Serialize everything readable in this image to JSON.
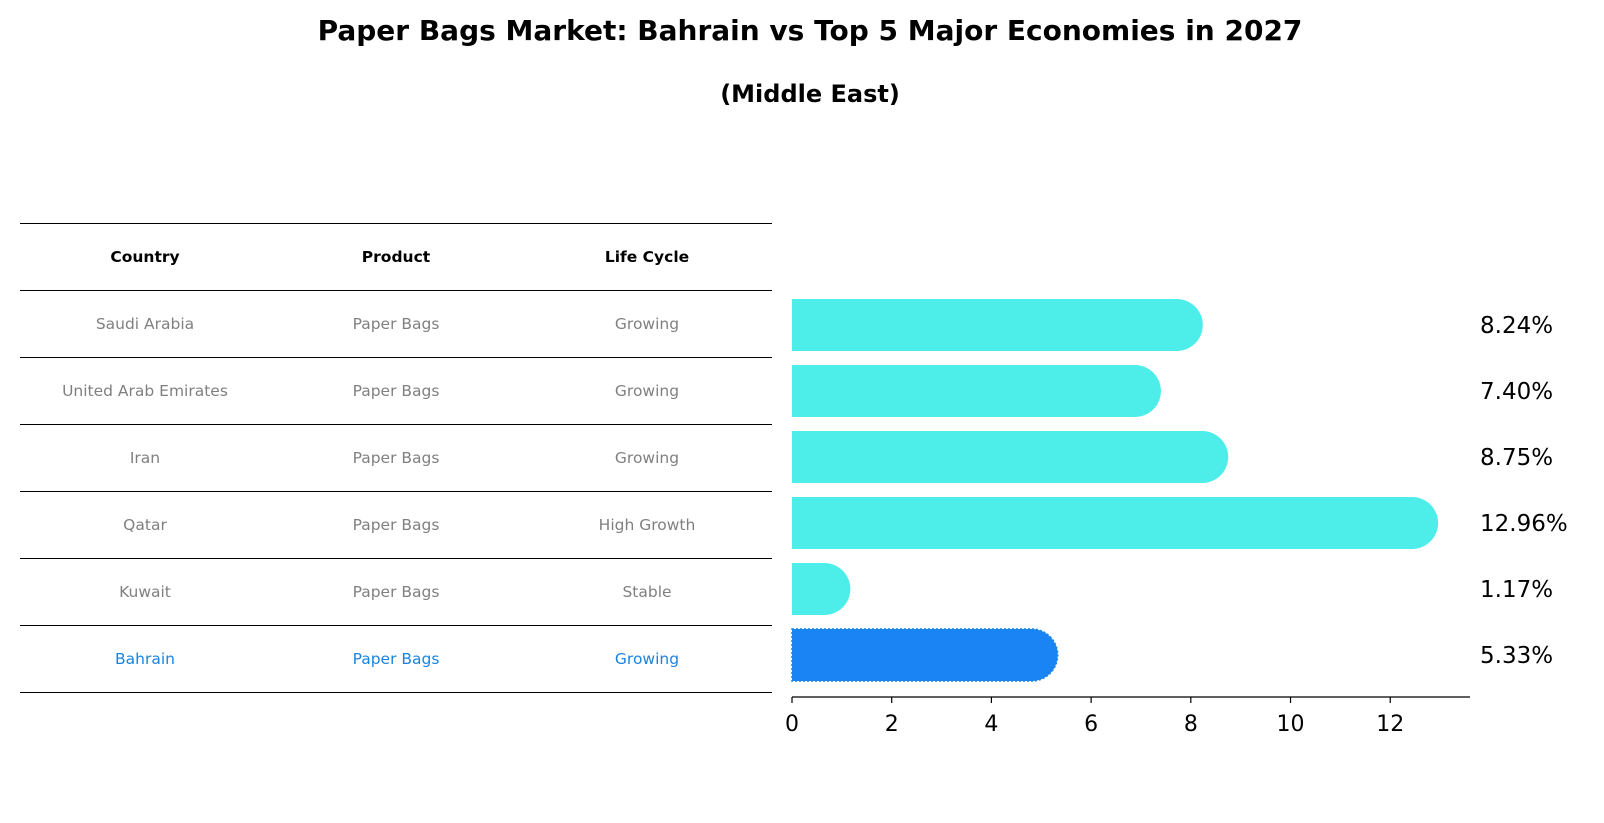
{
  "title": "Paper Bags Market: Bahrain vs Top 5 Major Economies in 2027",
  "subtitle": "(Middle East)",
  "table": {
    "headers": {
      "country": "Country",
      "product": "Product",
      "life_cycle": "Life Cycle"
    },
    "rows": [
      {
        "country": "Saudi Arabia",
        "product": "Paper Bags",
        "life_cycle": "Growing"
      },
      {
        "country": "United Arab Emirates",
        "product": "Paper Bags",
        "life_cycle": "Growing"
      },
      {
        "country": "Iran",
        "product": "Paper Bags",
        "life_cycle": "Growing"
      },
      {
        "country": "Qatar",
        "product": "Paper Bags",
        "life_cycle": "High Growth"
      },
      {
        "country": "Kuwait",
        "product": "Paper Bags",
        "life_cycle": "Stable"
      },
      {
        "country": "Bahrain",
        "product": "Paper Bags",
        "life_cycle": "Growing"
      }
    ]
  },
  "colors": {
    "bar": "#4deeea",
    "highlight": "#1a84f5",
    "highlight_text": "#1a84e0"
  },
  "chart_data": {
    "type": "bar",
    "orientation": "horizontal",
    "categories": [
      "Saudi Arabia",
      "United Arab Emirates",
      "Iran",
      "Qatar",
      "Kuwait",
      "Bahrain"
    ],
    "values": [
      8.24,
      7.4,
      8.75,
      12.96,
      1.17,
      5.33
    ],
    "value_labels": [
      "8.24%",
      "7.40%",
      "8.75%",
      "12.96%",
      "1.17%",
      "5.33%"
    ],
    "highlight_category": "Bahrain",
    "xlim": [
      0,
      13.6
    ],
    "xticks": [
      0,
      2,
      4,
      6,
      8,
      10,
      12
    ],
    "xtick_labels": [
      "0",
      "2",
      "4",
      "6",
      "8",
      "10",
      "12"
    ],
    "xlabel": "",
    "ylabel": "",
    "grid": false
  }
}
